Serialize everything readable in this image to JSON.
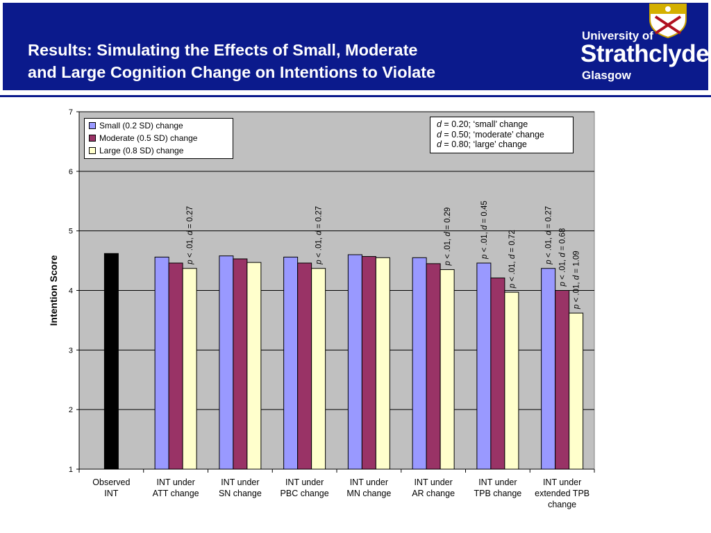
{
  "header": {
    "title_line1": "Results: Simulating the Effects of Small, Moderate",
    "title_line2": "and Large Cognition Change on Intentions to Violate",
    "logo_university": "University of",
    "logo_strathclyde": "Strathclyde",
    "logo_glasgow": "Glasgow",
    "banner_color": "#0b1a8c"
  },
  "effect_sizes": {
    "small": {
      "d": "d",
      "rest": " = 0.20; ‘small’ change"
    },
    "moderate": {
      "d": "d",
      "rest": " = 0.50; ‘moderate’ change"
    },
    "large": {
      "d": "d",
      "rest": " = 0.80; ‘large’ change"
    }
  },
  "chart_data": {
    "type": "bar",
    "ylabel": "Intention Score",
    "xlabel": "",
    "ylim": [
      1,
      7
    ],
    "yticks": [
      "1",
      "2",
      "3",
      "4",
      "5",
      "6",
      "7"
    ],
    "legend_position": "top-left",
    "plot_background": "#c0c0c0",
    "categories": [
      [
        "Observed",
        "INT"
      ],
      [
        "INT under",
        "ATT change"
      ],
      [
        "INT under",
        "SN change"
      ],
      [
        "INT under",
        "PBC change"
      ],
      [
        "INT under",
        "MN change"
      ],
      [
        "INT under",
        "AR change"
      ],
      [
        "INT under",
        "TPB change"
      ],
      [
        "INT under",
        "extended TPB",
        "change"
      ]
    ],
    "observed": {
      "value": 4.62,
      "color": "#000000"
    },
    "series": [
      {
        "name": "Small (0.2 SD) change",
        "color": "#9999ff",
        "values": [
          null,
          4.56,
          4.58,
          4.56,
          4.6,
          4.55,
          4.46,
          4.37
        ]
      },
      {
        "name": "Moderate (0.5 SD) change",
        "color": "#993366",
        "values": [
          null,
          4.46,
          4.53,
          4.46,
          4.57,
          4.45,
          4.21,
          4.0
        ]
      },
      {
        "name": "Large (0.8 SD) change",
        "color": "#ffffcc",
        "values": [
          null,
          4.37,
          4.47,
          4.37,
          4.55,
          4.35,
          3.97,
          3.62
        ]
      }
    ],
    "annotations": [
      {
        "category": 1,
        "series": 2,
        "p": "p",
        "mid": " < .01, ",
        "d": "d",
        "rest": " = 0.27"
      },
      {
        "category": 3,
        "series": 2,
        "p": "p",
        "mid": " < .01, ",
        "d": "d",
        "rest": " = 0.27"
      },
      {
        "category": 5,
        "series": 2,
        "p": "p",
        "mid": " < .01, ",
        "d": "d",
        "rest": " = 0.29"
      },
      {
        "category": 6,
        "series": 0,
        "p": "p",
        "mid": " < .01, ",
        "d": "d",
        "rest": " = 0.45"
      },
      {
        "category": 6,
        "series": 2,
        "p": "p",
        "mid": " < .01, ",
        "d": "d",
        "rest": " = 0.72"
      },
      {
        "category": 7,
        "series": 0,
        "p": "p",
        "mid": " < .01, ",
        "d": "d",
        "rest": " = 0.27"
      },
      {
        "category": 7,
        "series": 1,
        "p": "p",
        "mid": " < .01, ",
        "d": "d",
        "rest": " = 0.68"
      },
      {
        "category": 7,
        "series": 2,
        "p": "p",
        "mid": " < .01, ",
        "d": "d",
        "rest": " = 1.09"
      }
    ]
  }
}
